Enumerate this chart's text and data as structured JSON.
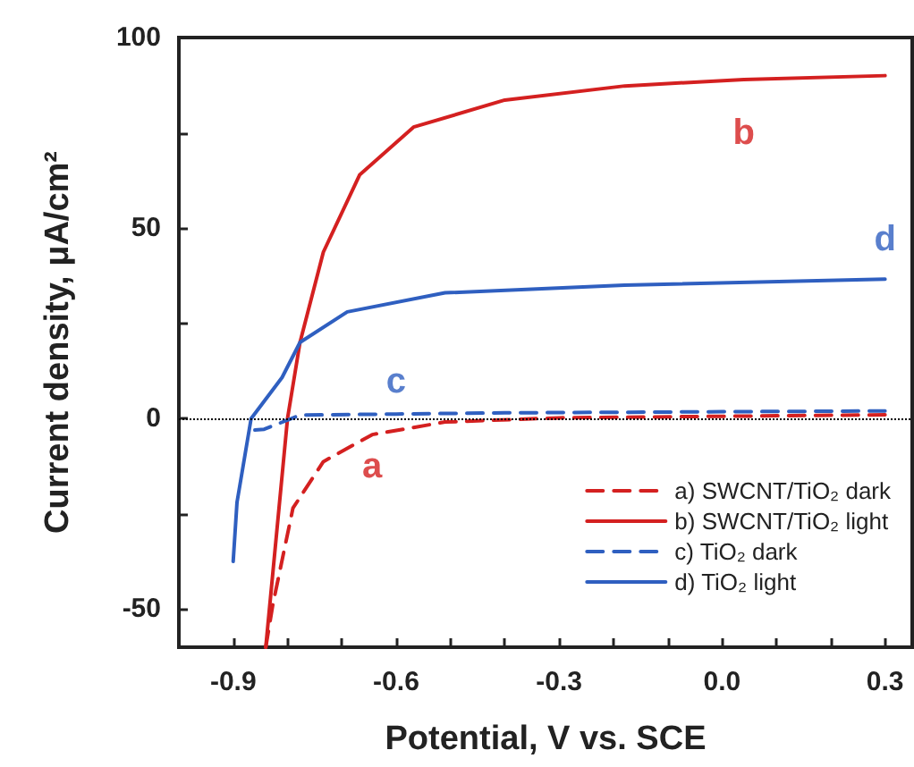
{
  "chart_data": {
    "type": "line",
    "xlabel": "Potential, V vs. SCE",
    "ylabel": "Current density, μA/cm²",
    "xlim": [
      -1.0,
      0.35
    ],
    "xticks": [
      {
        "value": -1.0,
        "label": null
      },
      {
        "value": -0.9,
        "label": "-0.9"
      },
      {
        "value": -0.8,
        "label": null
      },
      {
        "value": -0.7,
        "label": null
      },
      {
        "value": -0.6,
        "label": "-0.6"
      },
      {
        "value": -0.5,
        "label": null
      },
      {
        "value": -0.4,
        "label": null
      },
      {
        "value": -0.3,
        "label": "-0.3"
      },
      {
        "value": -0.2,
        "label": null
      },
      {
        "value": -0.1,
        "label": null
      },
      {
        "value": 0,
        "label": "0.0"
      },
      {
        "value": 0.1,
        "label": null
      },
      {
        "value": 0.2,
        "label": null
      },
      {
        "value": 0.3,
        "label": "0.3"
      }
    ],
    "ylim": [
      -60,
      100
    ],
    "yticks": [
      -50,
      {
        "value": -25,
        "label": null
      },
      0,
      {
        "value": 25,
        "label": null
      },
      50,
      {
        "value": 75,
        "label": null
      },
      100
    ],
    "grid": false,
    "legend": "bottom right",
    "marker": "none",
    "series": [
      {
        "name": "a) SWCNT/TiO₂ dark",
        "color": "#d42020",
        "line_style": "dashed",
        "x": [
          -0.84,
          -0.827,
          -0.79,
          -0.734,
          -0.644,
          -0.51,
          -0.3,
          0.0,
          0.3
        ],
        "values": [
          -60,
          -48.8,
          -23.5,
          -11.3,
          -4.2,
          -0.9,
          0.2,
          0.6,
          1
        ]
      },
      {
        "name": "b) SWCNT/TiO₂ light",
        "color": "#d42020",
        "line_style": "solid",
        "x": [
          -0.84,
          -0.8,
          -0.777,
          -0.734,
          -0.667,
          -0.568,
          -0.4,
          -0.179,
          0.04,
          0.3
        ],
        "values": [
          -60,
          0,
          20,
          43.7,
          64,
          76.5,
          83.6,
          87.3,
          89,
          90
        ]
      },
      {
        "name": "c) TiO₂ dark",
        "color": "#2f5fc0",
        "line_style": "dashed",
        "x": [
          -0.86,
          -0.843,
          -0.777,
          -0.6,
          -0.4,
          0.0,
          0.3
        ],
        "values": [
          -3,
          -2.8,
          0.9,
          1.2,
          1.5,
          1.8,
          2
        ]
      },
      {
        "name": "d) TiO₂ light",
        "color": "#2f5fc0",
        "line_style": "solid",
        "x": [
          -0.9,
          -0.893,
          -0.867,
          -0.81,
          -0.777,
          -0.69,
          -0.51,
          -0.18,
          0.3
        ],
        "values": [
          -37.5,
          -22,
          0,
          10.8,
          20,
          28,
          33,
          35,
          36.6
        ]
      }
    ],
    "ref_lines": [
      {
        "axis": "y",
        "value": 0,
        "color": "#000000",
        "line_style": "dotted"
      }
    ],
    "annotations": [
      "a",
      "b",
      "c",
      "d"
    ]
  }
}
